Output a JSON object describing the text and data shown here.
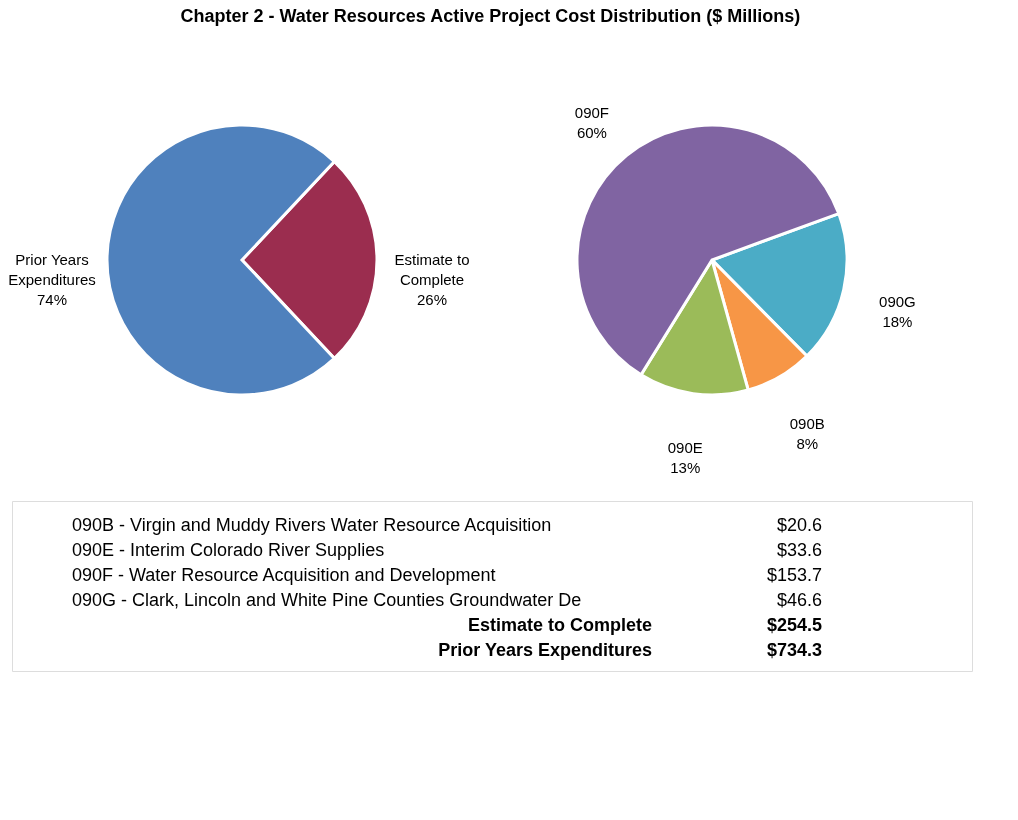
{
  "chart_data": [
    {
      "type": "pie",
      "title": "Chapter 2 - Water Resources Active Project Cost Distribution ($ Millions)",
      "categories": [
        "Estimate to Complete",
        "Prior Years Expenditures"
      ],
      "values": [
        26,
        74
      ],
      "value_labels": [
        "26%",
        "74%"
      ],
      "colors": [
        "#9b2d4f",
        "#4f81bd"
      ]
    },
    {
      "type": "pie",
      "categories": [
        "090G",
        "090B",
        "090E",
        "090F"
      ],
      "values": [
        18,
        8,
        13,
        60
      ],
      "value_labels": [
        "18%",
        "8%",
        "13%",
        "60%"
      ],
      "colors": [
        "#4bacc6",
        "#f79646",
        "#9bbb59",
        "#8064a2"
      ]
    },
    {
      "type": "other",
      "annotations": [
        "090B - Virgin and Muddy Rivers Water Resource Acquisition",
        "$20.6",
        "090E - Interim Colorado River Supplies",
        "$33.6",
        "090F - Water Resource Acquisition and Development",
        "$153.7",
        "090G - Clark, Lincoln and White Pine Counties Groundwater De",
        "$46.6",
        "Estimate to Complete",
        "$254.5",
        "Prior Years Expenditures",
        "$734.3"
      ]
    }
  ]
}
